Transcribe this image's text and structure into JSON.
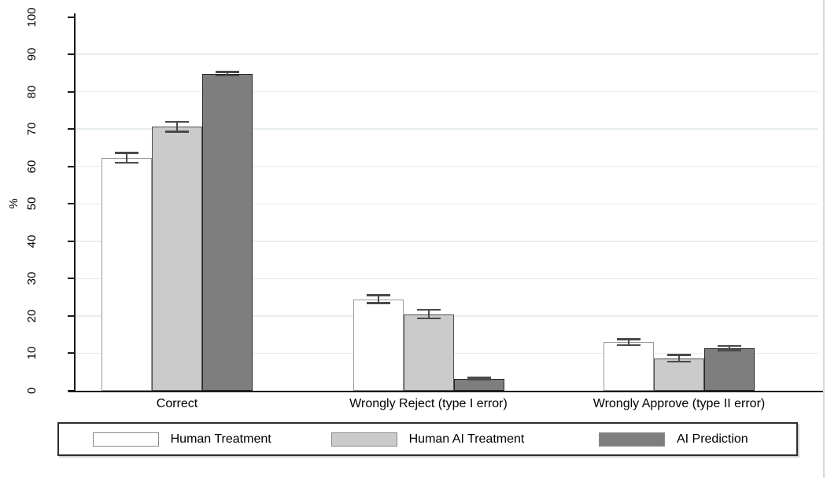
{
  "chart_data": {
    "type": "bar",
    "title": "",
    "xlabel": "",
    "ylabel": "%",
    "ylim": [
      0,
      100
    ],
    "yticks": [
      0,
      10,
      20,
      30,
      40,
      50,
      60,
      70,
      80,
      90,
      100
    ],
    "gridline_values": [
      10,
      20,
      30,
      40,
      50,
      60,
      70,
      80,
      90
    ],
    "grid": true,
    "error_bars": true,
    "legend_position": "bottom",
    "categories": [
      "Correct",
      "Wrongly Reject (type I error)",
      "Wrongly Approve (type II error)"
    ],
    "series": [
      {
        "name": "Human Treatment",
        "fill": "#ffffff",
        "border": "#999999",
        "values": [
          62.3,
          24.5,
          13.0
        ],
        "ci": [
          1.3,
          1.0,
          0.8
        ]
      },
      {
        "name": "Human AI Treatment",
        "fill": "#cbcbcb",
        "border": "#4f4f4f",
        "values": [
          70.6,
          20.5,
          8.7
        ],
        "ci": [
          1.3,
          1.2,
          0.9
        ]
      },
      {
        "name": "AI Prediction",
        "fill": "#7e7e7e",
        "border": "#262626",
        "values": [
          84.8,
          3.2,
          11.4
        ],
        "ci": [
          0.5,
          0.3,
          0.6
        ]
      }
    ],
    "colors": {
      "error_bar": "#4a4a4a",
      "gridline": "#e7eef0",
      "axis": "#1a1a1a",
      "text": "#000000",
      "legend_border": "#2e2e2e",
      "swatch_border": "#8a8a8a",
      "figure_right_border": "#d8d8d8"
    }
  }
}
